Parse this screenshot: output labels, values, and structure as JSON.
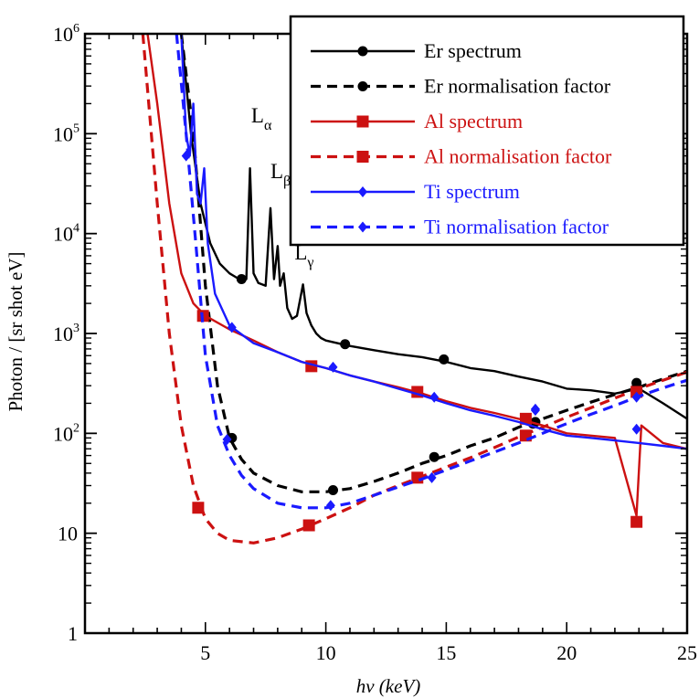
{
  "chart_data": {
    "type": "line",
    "xlabel": "hν (keV)",
    "ylabel": "Photon / [sr shot eV]",
    "xlim": [
      0,
      25
    ],
    "ylim": [
      1,
      1000000
    ],
    "yscale": "log",
    "x_ticks": [
      5,
      10,
      15,
      20,
      25
    ],
    "x_tick_labels": [
      "5",
      "10",
      "15",
      "20",
      "25"
    ],
    "y_ticks": [
      1,
      10,
      100,
      1000,
      10000,
      100000,
      1000000
    ],
    "y_tick_labels": [
      {
        "base": "1",
        "exp": ""
      },
      {
        "base": "10",
        "exp": ""
      },
      {
        "base": "10",
        "exp": "2"
      },
      {
        "base": "10",
        "exp": "3"
      },
      {
        "base": "10",
        "exp": "4"
      },
      {
        "base": "10",
        "exp": "5"
      },
      {
        "base": "10",
        "exp": "6"
      }
    ],
    "legend_position": "top-right",
    "annotations": [
      {
        "base": "L",
        "sub": "α",
        "x": 6.9,
        "y": 130000
      },
      {
        "base": "L",
        "sub": "β",
        "x": 7.7,
        "y": 36000
      },
      {
        "base": "L",
        "sub": "γ",
        "x": 8.7,
        "y": 5500
      }
    ],
    "series": [
      {
        "name": "Er spectrum",
        "color": "#000000",
        "dash": "solid",
        "marker": "circle",
        "x": [
          4.0,
          4.4,
          4.8,
          5.2,
          5.6,
          6.0,
          6.4,
          6.7,
          6.85,
          7.0,
          7.2,
          7.5,
          7.7,
          7.85,
          8.0,
          8.1,
          8.25,
          8.4,
          8.6,
          8.8,
          9.05,
          9.2,
          9.4,
          9.6,
          9.8,
          10.0,
          11.0,
          12.0,
          13.0,
          14.0,
          15.0,
          16.0,
          17.0,
          18.0,
          19.0,
          20.0,
          21.0,
          22.0,
          23.0,
          24.0,
          25.0
        ],
        "y": [
          1000000,
          100000,
          20000,
          8000,
          5000,
          4000,
          3500,
          3500,
          45000,
          4000,
          3200,
          3000,
          18000,
          3500,
          7500,
          3000,
          4000,
          1800,
          1400,
          1500,
          3100,
          1600,
          1200,
          1000,
          900,
          850,
          750,
          680,
          620,
          580,
          520,
          450,
          420,
          370,
          330,
          280,
          270,
          250,
          280,
          200,
          140
        ],
        "markers_x": [
          6.5,
          10.8,
          14.9,
          18.7,
          22.9
        ],
        "markers_y": [
          3500,
          780,
          550,
          130,
          320
        ]
      },
      {
        "name": "Er normalisation factor",
        "color": "#000000",
        "dash": "dashed",
        "marker": "circle",
        "x": [
          4.0,
          4.5,
          5.0,
          5.5,
          6.0,
          6.5,
          7.0,
          8.0,
          9.0,
          10.0,
          11.0,
          12.0,
          13.0,
          14.0,
          15.0,
          16.0,
          17.0,
          18.0,
          19.0,
          20.0,
          21.0,
          22.0,
          23.0,
          24.0,
          25.0
        ],
        "y": [
          1000000,
          100000,
          3000,
          300,
          90,
          55,
          40,
          30,
          26,
          26,
          28,
          33,
          40,
          50,
          60,
          75,
          90,
          115,
          140,
          170,
          205,
          245,
          290,
          350,
          420
        ],
        "markers_x": [
          6.1,
          10.3,
          14.5,
          18.6,
          22.9
        ],
        "markers_y": [
          90,
          27,
          58,
          125,
          290
        ]
      },
      {
        "name": "Al spectrum",
        "color": "#cc1111",
        "dash": "solid",
        "marker": "square",
        "x": [
          2.6,
          3.0,
          3.5,
          4.0,
          4.5,
          5.0,
          6.0,
          7.0,
          8.0,
          9.0,
          10.0,
          11.0,
          12.0,
          13.0,
          14.0,
          15.0,
          16.0,
          17.0,
          18.0,
          19.0,
          20.0,
          21.0,
          22.0,
          22.9,
          23.1,
          24.0,
          25.0
        ],
        "y": [
          1000000,
          200000,
          20000,
          4000,
          2000,
          1500,
          1100,
          850,
          650,
          520,
          450,
          380,
          330,
          290,
          250,
          210,
          180,
          160,
          140,
          120,
          100,
          95,
          90,
          15,
          120,
          80,
          70
        ],
        "markers_x": [
          4.9,
          9.4,
          13.8,
          18.3,
          22.9
        ],
        "markers_y": [
          1500,
          470,
          260,
          140,
          260
        ]
      },
      {
        "name": "Al normalisation factor",
        "color": "#cc1111",
        "dash": "dashed",
        "marker": "square",
        "x": [
          2.4,
          3.0,
          3.5,
          4.0,
          4.5,
          5.0,
          5.5,
          6.0,
          7.0,
          8.0,
          9.0,
          10.0,
          11.0,
          12.0,
          13.0,
          14.0,
          15.0,
          16.0,
          17.0,
          18.0,
          19.0,
          20.0,
          21.0,
          22.0,
          23.0,
          24.0,
          25.0
        ],
        "y": [
          1000000,
          20000,
          1000,
          120,
          30,
          14,
          10,
          8.5,
          8,
          9,
          11,
          14,
          18,
          24,
          30,
          37,
          46,
          57,
          72,
          92,
          115,
          145,
          180,
          225,
          280,
          340,
          410
        ],
        "markers_x": [
          4.7,
          9.3,
          13.8,
          18.3,
          22.9
        ],
        "markers_y": [
          18,
          12,
          36,
          95,
          13
        ]
      },
      {
        "name": "Ti spectrum",
        "color": "#1a1aff",
        "dash": "solid",
        "marker": "diamond",
        "x": [
          4.0,
          4.2,
          4.35,
          4.5,
          4.65,
          4.8,
          4.95,
          5.1,
          5.4,
          6.0,
          7.0,
          8.0,
          9.0,
          10.0,
          11.0,
          12.0,
          13.0,
          14.0,
          15.0,
          16.0,
          17.0,
          18.0,
          19.0,
          20.0,
          21.0,
          22.0,
          23.0,
          24.0,
          25.0
        ],
        "y": [
          1000000,
          100000,
          60000,
          200000,
          25000,
          20000,
          45000,
          8000,
          2500,
          1200,
          800,
          650,
          520,
          450,
          380,
          330,
          280,
          240,
          200,
          170,
          150,
          130,
          110,
          95,
          90,
          85,
          80,
          75,
          70
        ],
        "markers_x": [
          6.1,
          10.3,
          14.5,
          18.7,
          22.9
        ],
        "markers_y": [
          1150,
          460,
          230,
          175,
          110
        ]
      },
      {
        "name": "Ti normalisation factor",
        "color": "#1a1aff",
        "dash": "dashed",
        "marker": "diamond",
        "x": [
          3.8,
          4.2,
          4.6,
          5.0,
          5.5,
          6.0,
          6.5,
          7.0,
          8.0,
          9.0,
          10.0,
          11.0,
          12.0,
          13.0,
          14.0,
          15.0,
          16.0,
          17.0,
          18.0,
          19.0,
          20.0,
          21.0,
          22.0,
          23.0,
          24.0,
          25.0
        ],
        "y": [
          1000000,
          100000,
          8000,
          600,
          120,
          60,
          38,
          28,
          20,
          18,
          18,
          20,
          24,
          29,
          35,
          43,
          53,
          65,
          80,
          100,
          125,
          155,
          190,
          235,
          285,
          340
        ],
        "markers_x": [
          4.2,
          5.9,
          10.2,
          14.4,
          18.7,
          22.9
        ],
        "markers_y": [
          60000,
          87,
          19,
          36,
          170,
          230
        ]
      }
    ]
  }
}
